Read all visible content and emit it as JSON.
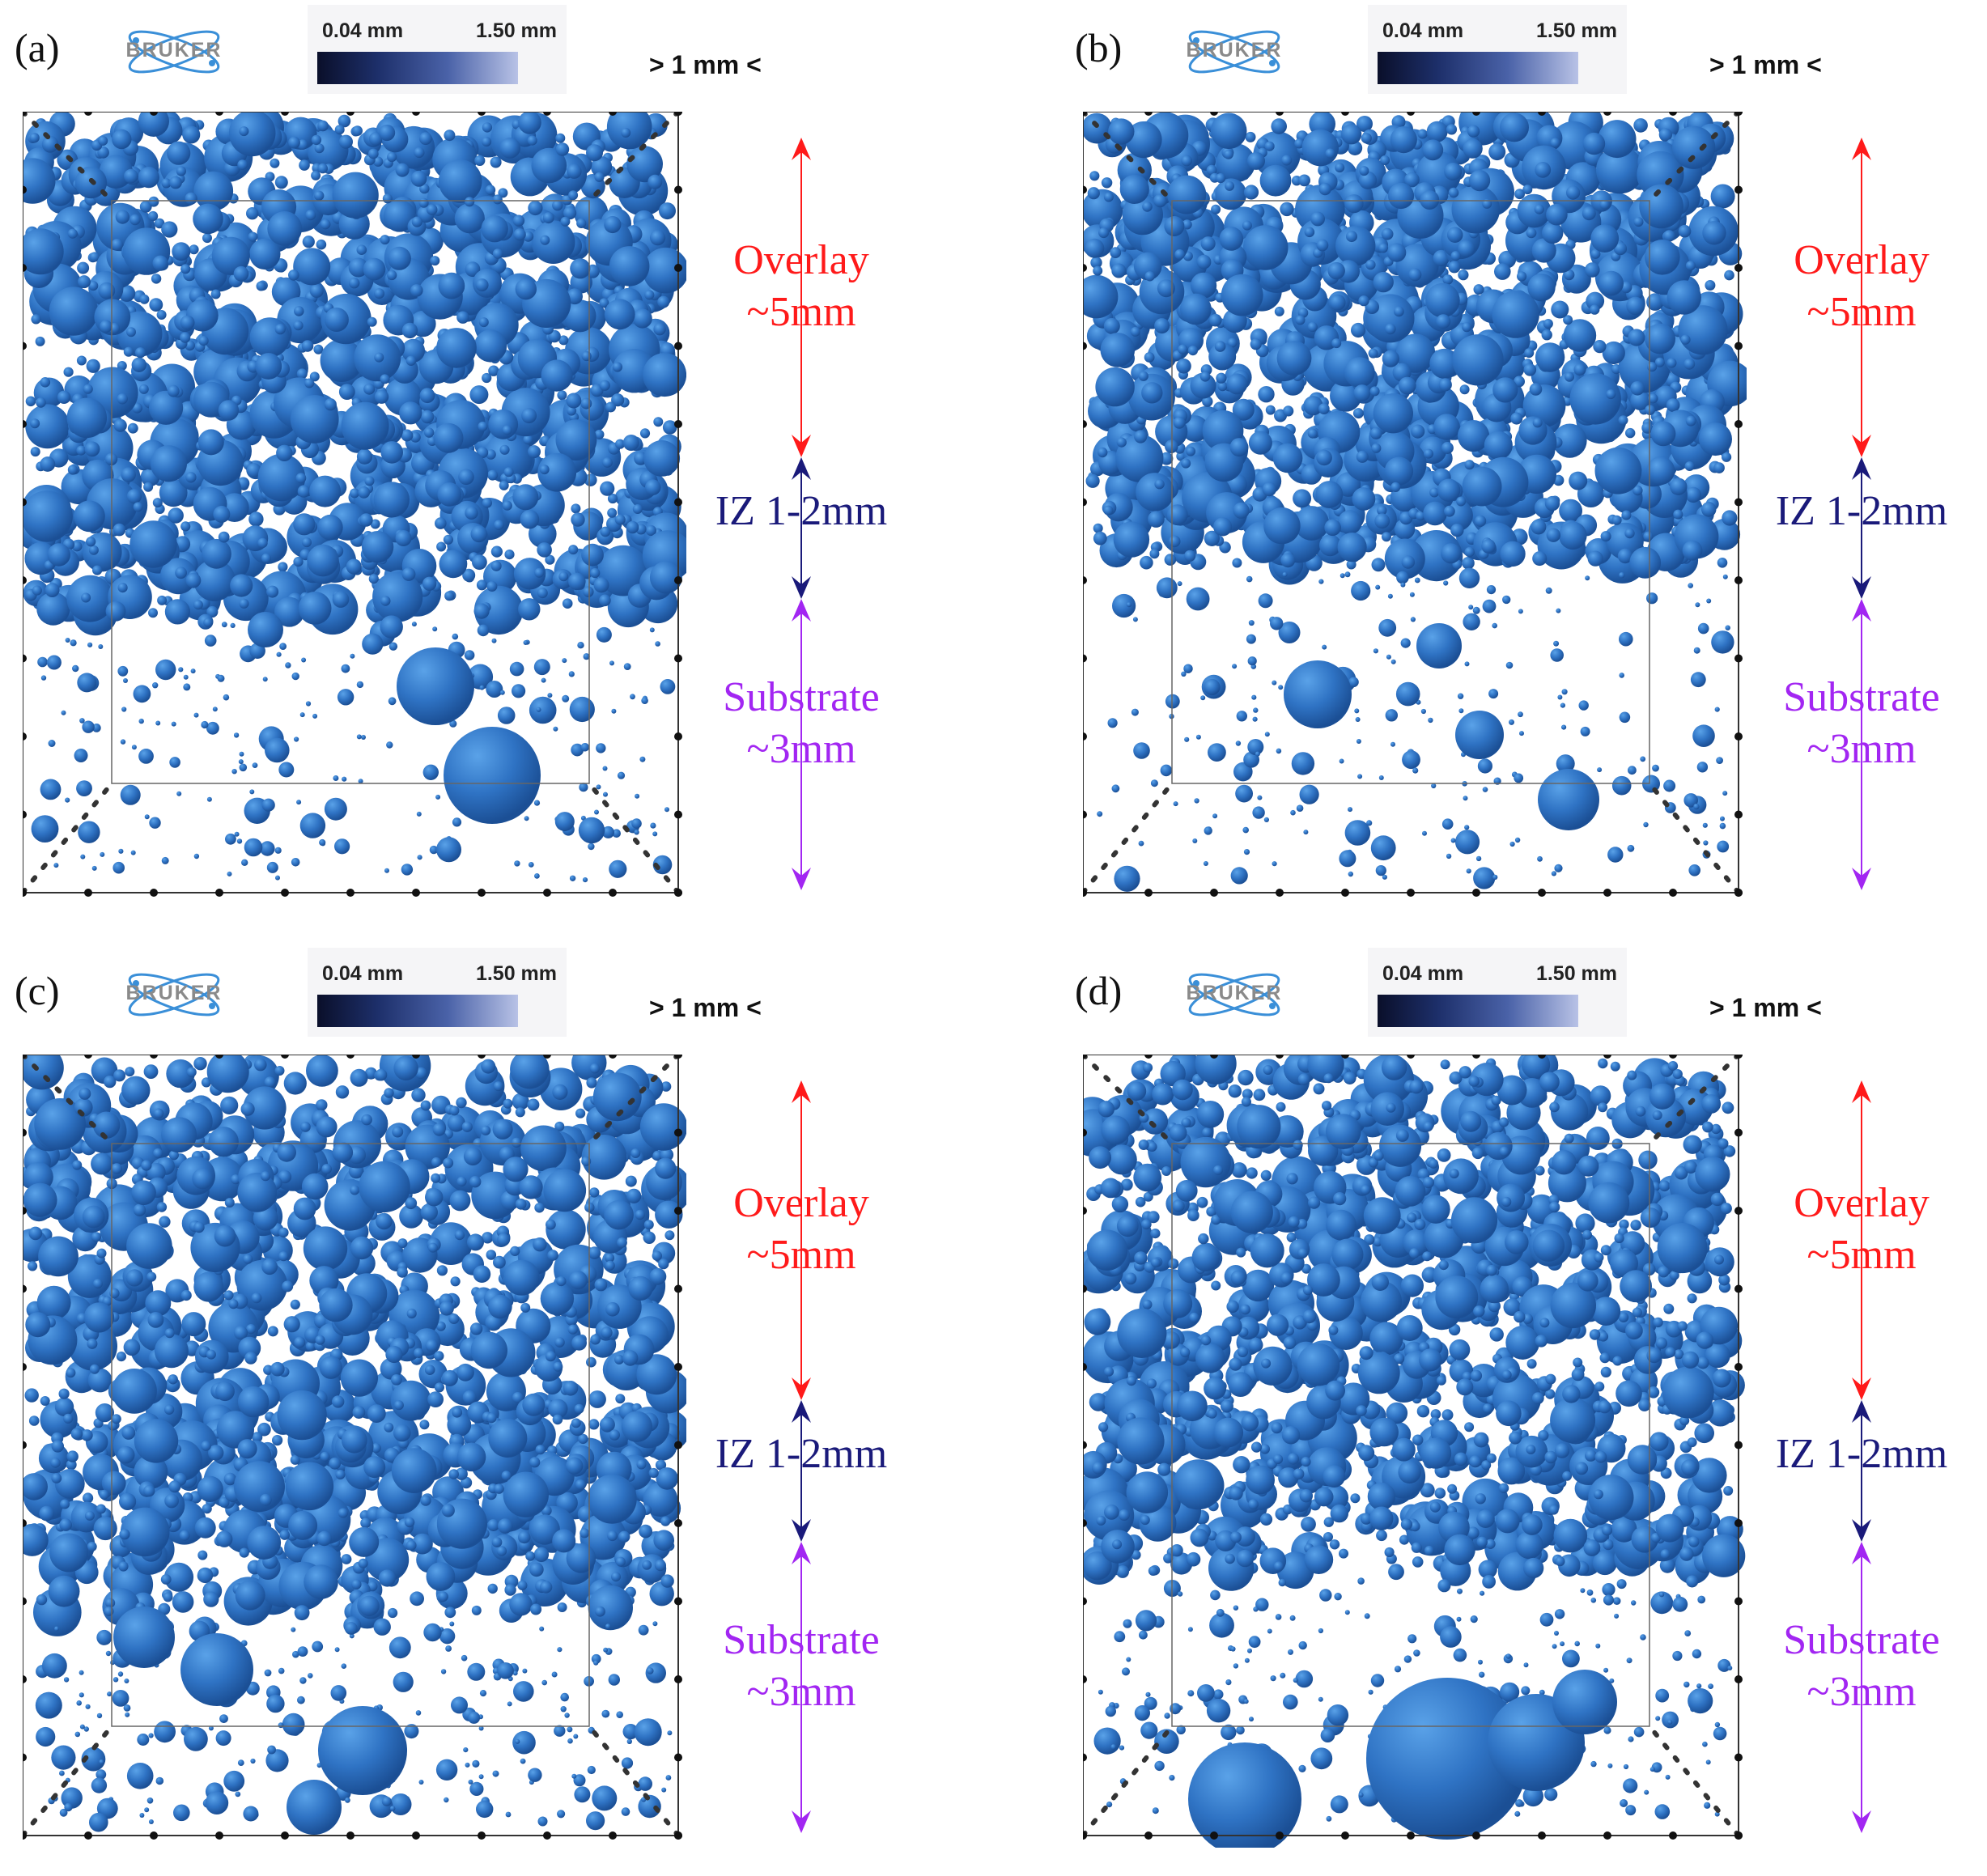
{
  "panels": [
    {
      "label": "(a)",
      "logo_text": "BRUKER",
      "cbar_min": "0.04 mm",
      "cbar_max": "1.50 mm",
      "scale": "> 1 mm <",
      "overlay_label": "Overlay",
      "overlay_size": "~5mm",
      "iz_label": "IZ 1-2mm",
      "substrate_label": "Substrate",
      "substrate_size": "~3mm"
    },
    {
      "label": "(b)",
      "logo_text": "BRUKER",
      "cbar_min": "0.04 mm",
      "cbar_max": "1.50 mm",
      "scale": "> 1 mm <",
      "overlay_label": "Overlay",
      "overlay_size": "~5mm",
      "iz_label": "IZ 1-2mm",
      "substrate_label": "Substrate",
      "substrate_size": "~3mm"
    },
    {
      "label": "(c)",
      "logo_text": "BRUKER",
      "cbar_min": "0.04 mm",
      "cbar_max": "1.50 mm",
      "scale": "> 1 mm <",
      "overlay_label": "Overlay",
      "overlay_size": "~5mm",
      "iz_label": "IZ 1-2mm",
      "substrate_label": "Substrate",
      "substrate_size": "~3mm"
    },
    {
      "label": "(d)",
      "logo_text": "BRUKER",
      "cbar_min": "0.04 mm",
      "cbar_max": "1.50 mm",
      "scale": "> 1 mm <",
      "overlay_label": "Overlay",
      "overlay_size": "~5mm",
      "iz_label": "IZ 1-2mm",
      "substrate_label": "Substrate",
      "substrate_size": "~3mm"
    }
  ],
  "colors": {
    "pore_blue": "#2f73c4",
    "pore_dark": "#1b4f95",
    "pore_light": "#5aa2e8",
    "overlay_red": "#ff1a1a",
    "iz_navy": "#1a1a7a",
    "substrate_purple": "#a226f2"
  }
}
